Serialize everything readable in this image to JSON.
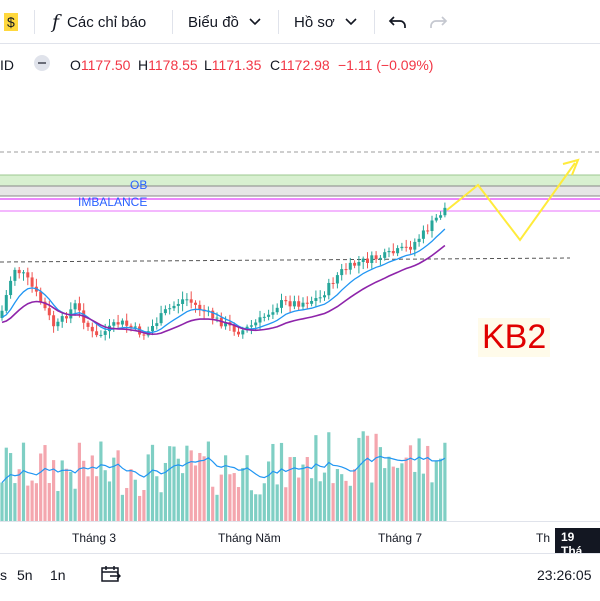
{
  "toolbar": {
    "price_alert_glyph": "$",
    "indicators_label": "Các chỉ báo",
    "chart_type_label": "Biểu đồ",
    "profile_label": "Hồ sơ",
    "undo_icon": "undo-icon",
    "redo_icon": "redo-icon"
  },
  "legend": {
    "symbol_fragment": "ID",
    "open_label": "O",
    "open": "1177.50",
    "high_label": "H",
    "high": "1178.55",
    "low_label": "L",
    "low": "1171.35",
    "close_label": "C",
    "close": "1172.98",
    "change": "−1.11 (−0.09%)"
  },
  "annotations": {
    "ob": "OB",
    "imbalance": "IMBALANCE",
    "kb2": "KB2"
  },
  "time_axis": {
    "labels": [
      "Tháng 3",
      "Tháng Năm",
      "Tháng 7",
      "Th"
    ],
    "cursor_tag": "19 Thá"
  },
  "bottom_bar": {
    "range_5d": "5n",
    "range_1y": "1n",
    "clock": "23:26:05"
  },
  "colors": {
    "up": "#26a69a",
    "down": "#ef5350",
    "vol_up": "#7fcfc4",
    "vol_down": "#f4a6ae",
    "ema_fast": "#2196f3",
    "ema_slow": "#8e24aa",
    "ob_zone": "#d8f0d0",
    "imbalance_line": "#e040fb",
    "projection": "#ffeb3b",
    "kb2": "#e00000"
  },
  "chart_data": {
    "type": "candlestick",
    "last_ohlc": {
      "open": 1177.5,
      "high": 1178.55,
      "low": 1171.35,
      "close": 1172.98
    },
    "change": -1.11,
    "change_pct": -0.09,
    "x_ticks": [
      "Tháng 3",
      "Tháng Năm",
      "Tháng 7"
    ],
    "zones": [
      "OB",
      "IMBALANCE"
    ],
    "projection": "zigzag up"
  }
}
